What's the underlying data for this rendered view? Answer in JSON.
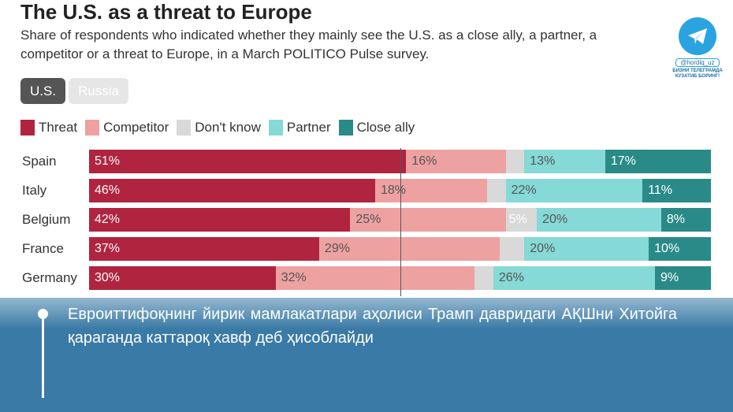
{
  "chart_data": {
    "type": "bar",
    "stacked": true,
    "orientation": "horizontal",
    "title": "The U.S. as a threat to Europe",
    "subtitle": "Share of respondents who indicated whether they mainly see the U.S. as a close ally, a partner, a competitor or a threat to Europe, in a March POLITICO Pulse survey.",
    "toggles": [
      {
        "label": "U.S.",
        "active": true
      },
      {
        "label": "Russia",
        "active": false
      }
    ],
    "categories": [
      "Spain",
      "Italy",
      "Belgium",
      "France",
      "Germany"
    ],
    "series": [
      {
        "name": "Threat",
        "color": "#b0243f",
        "values": [
          51,
          46,
          42,
          37,
          30
        ]
      },
      {
        "name": "Competitor",
        "color": "#eda1a0",
        "values": [
          16,
          18,
          25,
          29,
          32
        ]
      },
      {
        "name": "Don't know",
        "color": "#d9d9d9",
        "values": [
          3,
          3,
          5,
          4,
          3
        ]
      },
      {
        "name": "Partner",
        "color": "#85d9d6",
        "values": [
          13,
          22,
          20,
          20,
          26
        ]
      },
      {
        "name": "Close ally",
        "color": "#2a8a87",
        "values": [
          17,
          11,
          8,
          10,
          9
        ]
      }
    ],
    "xlim": [
      0,
      100
    ],
    "legend_position": "top-left",
    "show_labels_min": 5
  },
  "overlay": {
    "headline": "Евроиттифоқнинг йирик мамлакатлари аҳолиси Трамп давридаги АҚШни Хитойга қараганда каттароқ хавф деб ҳисоблайди"
  },
  "promo": {
    "handle": "@hordiq_uz",
    "cta": "БИЗНИ ТЕЛЕГРАМДА КУЗАТИБ БОРИНГ!"
  }
}
